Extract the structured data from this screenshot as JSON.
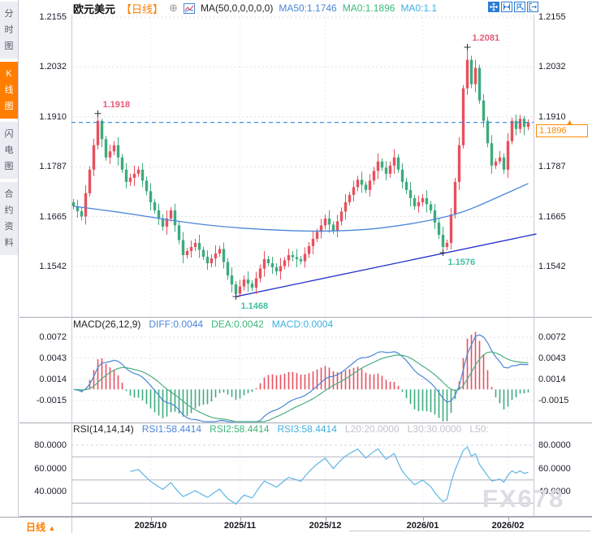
{
  "colors": {
    "up_red": "#e8505e",
    "down_green": "#3dab7d",
    "ma50_blue": "#4a86d8",
    "trendline_navy": "#2330c8",
    "price_line_blue": "#2e86de",
    "accent_orange": "#ff7e00",
    "rsi_line": "#5fb5e5",
    "ann_high": "#e25c74",
    "ann_low": "#41c0a0",
    "grid": "#e4e4ee",
    "panel_border": "#a8aab5"
  },
  "sidebar": {
    "active_index": 1,
    "tabs": [
      {
        "label": "分时图"
      },
      {
        "label": "K线图"
      },
      {
        "label": "闪电图"
      },
      {
        "label": "合约资料"
      }
    ]
  },
  "header": {
    "symbol": "欧元美元",
    "period": "【日线】",
    "plus_icon": "⊕",
    "ma_settings": "MA(50,0,0,0,0,0)",
    "ma50": "MA50:1.1746",
    "ma0a": "MA0:1.1896",
    "ma0b": "MA0:1.1"
  },
  "toolbar": {
    "icons": [
      "pan-icon",
      "range-zoom-icon",
      "range-select-icon",
      "exit-icon"
    ]
  },
  "bottom": {
    "period_button": "日线",
    "arrow": "▲"
  },
  "watermark": "FX678",
  "chart_data": {
    "type": "candlestick",
    "symbol": "欧元美元 (EUR/USD)",
    "interval": "日线",
    "x_axis": {
      "labels": [
        "2025/10",
        "2025/11",
        "2025/12",
        "2026/01",
        "2026/02"
      ],
      "label_indices": [
        19,
        41,
        62,
        86,
        107
      ]
    },
    "main": {
      "y_ticks": [
        "1.2155",
        "1.2032",
        "1.1910",
        "1.1787",
        "1.1665",
        "1.1542"
      ],
      "current_price": "1.1896",
      "current_price_value": 1.1896,
      "annotations": [
        {
          "label": "1.1918",
          "i": 6,
          "value": 1.1918,
          "type": "high"
        },
        {
          "label": "1.2081",
          "i": 97,
          "value": 1.2081,
          "type": "high"
        },
        {
          "label": "1.1468",
          "i": 40,
          "value": 1.1468,
          "type": "low"
        },
        {
          "label": "1.1576",
          "i": 91,
          "value": 1.1576,
          "type": "low"
        }
      ],
      "ma50_points": [
        [
          0,
          1.169
        ],
        [
          12,
          1.1675
        ],
        [
          24,
          1.1655
        ],
        [
          36,
          1.164
        ],
        [
          48,
          1.1632
        ],
        [
          60,
          1.1628
        ],
        [
          72,
          1.1632
        ],
        [
          80,
          1.1642
        ],
        [
          88,
          1.1655
        ],
        [
          96,
          1.1675
        ],
        [
          104,
          1.171
        ],
        [
          112,
          1.1746
        ]
      ],
      "trendline": {
        "from": {
          "i": 40,
          "value": 1.1468
        },
        "to": {
          "i": 114,
          "value": 1.1622
        }
      },
      "candles": [
        [
          1.17,
          1.1708,
          1.1682,
          1.169
        ],
        [
          1.169,
          1.1706,
          1.1662,
          1.1678
        ],
        [
          1.1678,
          1.1688,
          1.1655,
          1.1665
        ],
        [
          1.1665,
          1.1742,
          1.1645,
          1.1722
        ],
        [
          1.1722,
          1.1788,
          1.1714,
          1.178
        ],
        [
          1.178,
          1.1856,
          1.1764,
          1.184
        ],
        [
          1.184,
          1.1918,
          1.183,
          1.19
        ],
        [
          1.19,
          1.1905,
          1.1835,
          1.1855
        ],
        [
          1.1855,
          1.1863,
          1.1802,
          1.181
        ],
        [
          1.181,
          1.1841,
          1.1794,
          1.1825
        ],
        [
          1.1825,
          1.185,
          1.1815,
          1.184
        ],
        [
          1.184,
          1.186,
          1.179,
          1.181
        ],
        [
          1.181,
          1.1818,
          1.1772,
          1.178
        ],
        [
          1.178,
          1.1796,
          1.1734,
          1.175
        ],
        [
          1.175,
          1.177,
          1.174,
          1.176
        ],
        [
          1.176,
          1.179,
          1.174,
          1.177
        ],
        [
          1.177,
          1.1788,
          1.1762,
          1.178
        ],
        [
          1.178,
          1.1796,
          1.1737,
          1.1753
        ],
        [
          1.1753,
          1.1763,
          1.1717,
          1.1727
        ],
        [
          1.1727,
          1.1747,
          1.168,
          1.17
        ],
        [
          1.17,
          1.1708,
          1.1672,
          1.168
        ],
        [
          1.168,
          1.1696,
          1.1644,
          1.166
        ],
        [
          1.166,
          1.167,
          1.163,
          1.164
        ],
        [
          1.164,
          1.168,
          1.162,
          1.166
        ],
        [
          1.166,
          1.1688,
          1.1652,
          1.168
        ],
        [
          1.168,
          1.1696,
          1.1627,
          1.1643
        ],
        [
          1.1643,
          1.1653,
          1.1597,
          1.1607
        ],
        [
          1.1607,
          1.1627,
          1.155,
          1.157
        ],
        [
          1.157,
          1.1588,
          1.1562,
          1.158
        ],
        [
          1.158,
          1.1606,
          1.1564,
          1.159
        ],
        [
          1.159,
          1.161,
          1.158,
          1.16
        ],
        [
          1.16,
          1.162,
          1.1563,
          1.1583
        ],
        [
          1.1583,
          1.1591,
          1.1558,
          1.1566
        ],
        [
          1.1566,
          1.1582,
          1.1534,
          1.155
        ],
        [
          1.155,
          1.1572,
          1.154,
          1.1562
        ],
        [
          1.1562,
          1.1594,
          1.1542,
          1.1574
        ],
        [
          1.1574,
          1.1593,
          1.1566,
          1.1585
        ],
        [
          1.1585,
          1.1601,
          1.1537,
          1.1553
        ],
        [
          1.1553,
          1.1563,
          1.151,
          1.152
        ],
        [
          1.152,
          1.154,
          1.1478,
          1.1498
        ],
        [
          1.1498,
          1.1506,
          1.1468,
          1.1475
        ],
        [
          1.1475,
          1.1509,
          1.1471,
          1.1493
        ],
        [
          1.1493,
          1.152,
          1.1483,
          1.151
        ],
        [
          1.151,
          1.153,
          1.148,
          1.15
        ],
        [
          1.15,
          1.1508,
          1.1482,
          1.149
        ],
        [
          1.149,
          1.1529,
          1.1474,
          1.1513
        ],
        [
          1.1513,
          1.1547,
          1.1503,
          1.1537
        ],
        [
          1.1537,
          1.158,
          1.1517,
          1.156
        ],
        [
          1.156,
          1.1568,
          1.1542,
          1.155
        ],
        [
          1.155,
          1.1566,
          1.1524,
          1.154
        ],
        [
          1.154,
          1.155,
          1.152,
          1.153
        ],
        [
          1.153,
          1.1563,
          1.151,
          1.1543
        ],
        [
          1.1543,
          1.1565,
          1.1535,
          1.1557
        ],
        [
          1.1557,
          1.1586,
          1.1541,
          1.157
        ],
        [
          1.157,
          1.158,
          1.1555,
          1.1565
        ],
        [
          1.1565,
          1.1585,
          1.154,
          1.156
        ],
        [
          1.156,
          1.1568,
          1.1547,
          1.1555
        ],
        [
          1.1555,
          1.1589,
          1.1539,
          1.1573
        ],
        [
          1.1573,
          1.1602,
          1.1563,
          1.1592
        ],
        [
          1.1592,
          1.163,
          1.1572,
          1.161
        ],
        [
          1.161,
          1.1635,
          1.1602,
          1.1627
        ],
        [
          1.1627,
          1.1659,
          1.1611,
          1.1643
        ],
        [
          1.1643,
          1.167,
          1.1633,
          1.166
        ],
        [
          1.166,
          1.168,
          1.1625,
          1.1645
        ],
        [
          1.1645,
          1.1653,
          1.1622,
          1.163
        ],
        [
          1.163,
          1.1669,
          1.1614,
          1.1653
        ],
        [
          1.1653,
          1.1687,
          1.1643,
          1.1677
        ],
        [
          1.1677,
          1.172,
          1.1657,
          1.17
        ],
        [
          1.17,
          1.1726,
          1.1692,
          1.1718
        ],
        [
          1.1718,
          1.1753,
          1.1702,
          1.1737
        ],
        [
          1.1737,
          1.1765,
          1.1727,
          1.1755
        ],
        [
          1.1755,
          1.1775,
          1.1723,
          1.1743
        ],
        [
          1.1743,
          1.1751,
          1.1722,
          1.173
        ],
        [
          1.173,
          1.1769,
          1.1714,
          1.1753
        ],
        [
          1.1753,
          1.1787,
          1.1743,
          1.1777
        ],
        [
          1.1777,
          1.182,
          1.1757,
          1.18
        ],
        [
          1.18,
          1.1808,
          1.1777,
          1.1785
        ],
        [
          1.1785,
          1.1801,
          1.1754,
          1.177
        ],
        [
          1.177,
          1.18,
          1.176,
          1.179
        ],
        [
          1.179,
          1.183,
          1.177,
          1.181
        ],
        [
          1.181,
          1.1818,
          1.1772,
          1.178
        ],
        [
          1.178,
          1.1796,
          1.1734,
          1.175
        ],
        [
          1.175,
          1.176,
          1.172,
          1.173
        ],
        [
          1.173,
          1.175,
          1.169,
          1.171
        ],
        [
          1.171,
          1.1718,
          1.1682,
          1.169
        ],
        [
          1.169,
          1.1716,
          1.1674,
          1.17
        ],
        [
          1.17,
          1.172,
          1.169,
          1.171
        ],
        [
          1.171,
          1.173,
          1.1675,
          1.1695
        ],
        [
          1.1695,
          1.1703,
          1.1672,
          1.168
        ],
        [
          1.168,
          1.1696,
          1.1634,
          1.165
        ],
        [
          1.165,
          1.166,
          1.161,
          1.162
        ],
        [
          1.162,
          1.164,
          1.1576,
          1.159
        ],
        [
          1.159,
          1.1608,
          1.1582,
          1.16
        ],
        [
          1.16,
          1.1686,
          1.1584,
          1.167
        ],
        [
          1.167,
          1.176,
          1.166,
          1.175
        ],
        [
          1.175,
          1.186,
          1.173,
          1.184
        ],
        [
          1.184,
          1.1988,
          1.1832,
          1.198
        ],
        [
          1.198,
          1.2081,
          1.1964,
          1.205
        ],
        [
          1.205,
          1.206,
          1.198,
          1.199
        ],
        [
          1.199,
          1.205,
          1.197,
          1.203
        ],
        [
          1.203,
          1.2038,
          1.1942,
          1.195
        ],
        [
          1.195,
          1.1966,
          1.1884,
          1.19
        ],
        [
          1.19,
          1.191,
          1.1835,
          1.1845
        ],
        [
          1.1845,
          1.1865,
          1.177,
          1.179
        ],
        [
          1.179,
          1.1808,
          1.1782,
          1.18
        ],
        [
          1.18,
          1.1826,
          1.1794,
          1.181
        ],
        [
          1.181,
          1.182,
          1.177,
          1.178
        ],
        [
          1.178,
          1.187,
          1.176,
          1.185
        ],
        [
          1.185,
          1.1908,
          1.1842,
          1.19
        ],
        [
          1.19,
          1.1916,
          1.1864,
          1.188
        ],
        [
          1.188,
          1.1915,
          1.187,
          1.1905
        ],
        [
          1.1905,
          1.1912,
          1.1865,
          1.1885
        ],
        [
          1.1885,
          1.1904,
          1.1877,
          1.1896
        ]
      ]
    },
    "macd": {
      "title": "MACD(26,12,9)",
      "diff_label": "DIFF:0.0044",
      "dea_label": "DEA:0.0042",
      "macd_label": "MACD:0.0004",
      "fast": 12,
      "slow": 26,
      "signal": 9,
      "y_ticks": [
        "0.0072",
        "0.0043",
        "0.0014",
        "-0.0015"
      ]
    },
    "rsi": {
      "title": "RSI(14,14,14)",
      "rsi1_label": "RSI1:58.4414",
      "rsi2_label": "RSI2:58.4414",
      "rsi3_label": "RSI3:58.4414",
      "l20_label": "L20:20.0000",
      "l30_label": "L30:30.0000",
      "l50_label": "L50:",
      "period": 14,
      "level_lines": [
        70,
        50,
        30
      ],
      "y_ticks": [
        "80.0000",
        "60.0000",
        "40.0000"
      ]
    }
  }
}
